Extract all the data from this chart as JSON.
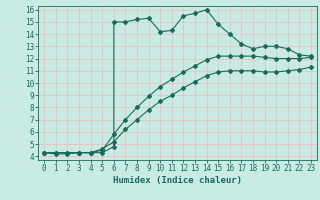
{
  "xlabel": "Humidex (Indice chaleur)",
  "bg_color": "#c8ece4",
  "line_color": "#1a6b5a",
  "grid_color": "#f5b8b8",
  "xlim": [
    -0.5,
    23.5
  ],
  "ylim": [
    3.7,
    16.3
  ],
  "xticks": [
    0,
    1,
    2,
    3,
    4,
    5,
    6,
    7,
    8,
    9,
    10,
    11,
    12,
    13,
    14,
    15,
    16,
    17,
    18,
    19,
    20,
    21,
    22,
    23
  ],
  "yticks": [
    4,
    5,
    6,
    7,
    8,
    9,
    10,
    11,
    12,
    13,
    14,
    15,
    16
  ],
  "line1_x": [
    0,
    1,
    2,
    3,
    4,
    5,
    6,
    6,
    7,
    8,
    9,
    10,
    11,
    12,
    13,
    14,
    15,
    16,
    17,
    18,
    19,
    20,
    21,
    22,
    23
  ],
  "line1_y": [
    4.3,
    4.2,
    4.2,
    4.3,
    4.3,
    4.3,
    4.8,
    15.0,
    15.0,
    15.2,
    15.3,
    14.2,
    14.3,
    15.5,
    15.7,
    16.0,
    14.8,
    14.0,
    13.2,
    12.8,
    13.0,
    13.0,
    12.8,
    12.3,
    12.2
  ],
  "line2_x": [
    0,
    1,
    2,
    3,
    4,
    5,
    6,
    7,
    8,
    9,
    10,
    11,
    12,
    13,
    14,
    15,
    16,
    17,
    18,
    19,
    20,
    21,
    22,
    23
  ],
  "line2_y": [
    4.3,
    4.3,
    4.3,
    4.3,
    4.3,
    4.5,
    5.8,
    7.0,
    8.0,
    8.9,
    9.7,
    10.3,
    10.9,
    11.4,
    11.9,
    12.2,
    12.2,
    12.2,
    12.2,
    12.1,
    12.0,
    12.0,
    12.0,
    12.1
  ],
  "line3_x": [
    0,
    1,
    2,
    3,
    4,
    5,
    6,
    7,
    8,
    9,
    10,
    11,
    12,
    13,
    14,
    15,
    16,
    17,
    18,
    19,
    20,
    21,
    22,
    23
  ],
  "line3_y": [
    4.3,
    4.3,
    4.3,
    4.3,
    4.3,
    4.6,
    5.2,
    6.2,
    7.0,
    7.8,
    8.5,
    9.0,
    9.6,
    10.1,
    10.6,
    10.9,
    11.0,
    11.0,
    11.0,
    10.9,
    10.9,
    11.0,
    11.1,
    11.3
  ],
  "xlabel_fontsize": 6.5,
  "tick_fontsize": 5.5
}
